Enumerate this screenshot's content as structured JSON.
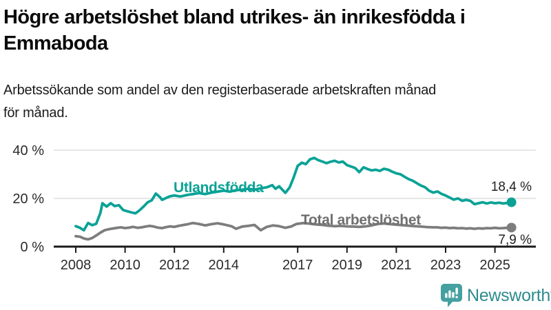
{
  "header": {
    "title": "Högre arbetslöshet bland utrikes- än inrikesfödda i\nEmmaboda",
    "subtitle": "Arbetssökande som andel av den registerbaserade arbetskraften månad\nför månad."
  },
  "chart_data": {
    "type": "line",
    "title": "Högre arbetslöshet bland utrikes- än inrikesfödda i Emmaboda",
    "subtitle": "Arbetssökande som andel av den registerbaserade arbetskraften månad för månad.",
    "xlabel": "",
    "ylabel": "",
    "xlim": [
      2007.85,
      2026.3
    ],
    "ylim": [
      0,
      44
    ],
    "grid": "horizontal",
    "legend_position": "inline-labels",
    "y_ticks": [
      {
        "value": 0,
        "label": "0 %"
      },
      {
        "value": 20,
        "label": "20 %"
      },
      {
        "value": 40,
        "label": "40 %"
      }
    ],
    "x_ticks": [
      {
        "year": 2008,
        "label": "2008"
      },
      {
        "year": 2010,
        "label": "2010"
      },
      {
        "year": 2012,
        "label": "2012"
      },
      {
        "year": 2014,
        "label": "2014"
      },
      {
        "year": 2017,
        "label": "2017"
      },
      {
        "year": 2019,
        "label": "2019"
      },
      {
        "year": 2021,
        "label": "2021"
      },
      {
        "year": 2023,
        "label": "2023"
      },
      {
        "year": 2025,
        "label": "2025"
      }
    ],
    "colors": {
      "grid": "#d8d8d8",
      "axis": "#1a1a1a",
      "tick_text": "#2b2b2b",
      "utlandsfodda": "#0ba296",
      "total": "#7d7d7d"
    },
    "series": [
      {
        "name": "Utlandsfödda",
        "color": "#0ba296",
        "end_label": "18,4 %",
        "end_value": 18.4,
        "points": [
          [
            2008.0,
            8.5
          ],
          [
            2008.17,
            7.8
          ],
          [
            2008.33,
            6.8
          ],
          [
            2008.5,
            9.8
          ],
          [
            2008.67,
            8.9
          ],
          [
            2008.83,
            9.5
          ],
          [
            2009.0,
            14.0
          ],
          [
            2009.08,
            18.0
          ],
          [
            2009.25,
            16.6
          ],
          [
            2009.42,
            18.0
          ],
          [
            2009.58,
            16.8
          ],
          [
            2009.75,
            17.2
          ],
          [
            2009.92,
            15.2
          ],
          [
            2010.08,
            14.7
          ],
          [
            2010.25,
            14.2
          ],
          [
            2010.42,
            13.8
          ],
          [
            2010.58,
            15.0
          ],
          [
            2010.75,
            16.6
          ],
          [
            2010.92,
            18.4
          ],
          [
            2011.08,
            19.2
          ],
          [
            2011.25,
            22.0
          ],
          [
            2011.42,
            20.5
          ],
          [
            2011.5,
            19.4
          ],
          [
            2011.67,
            20.2
          ],
          [
            2011.83,
            20.9
          ],
          [
            2012.0,
            21.2
          ],
          [
            2012.25,
            20.8
          ],
          [
            2012.5,
            21.4
          ],
          [
            2012.75,
            21.8
          ],
          [
            2013.0,
            22.2
          ],
          [
            2013.25,
            21.8
          ],
          [
            2013.5,
            22.4
          ],
          [
            2013.75,
            22.8
          ],
          [
            2014.0,
            23.2
          ],
          [
            2014.25,
            22.8
          ],
          [
            2014.5,
            23.4
          ],
          [
            2014.75,
            23.6
          ],
          [
            2015.0,
            24.0
          ],
          [
            2015.25,
            23.6
          ],
          [
            2015.5,
            24.2
          ],
          [
            2015.75,
            24.6
          ],
          [
            2015.97,
            25.5
          ],
          [
            2016.1,
            24.0
          ],
          [
            2016.25,
            25.0
          ],
          [
            2016.5,
            22.3
          ],
          [
            2016.67,
            24.5
          ],
          [
            2016.83,
            28.5
          ],
          [
            2017.0,
            33.5
          ],
          [
            2017.17,
            34.8
          ],
          [
            2017.33,
            34.2
          ],
          [
            2017.5,
            36.2
          ],
          [
            2017.67,
            36.8
          ],
          [
            2017.83,
            35.9
          ],
          [
            2018.0,
            35.3
          ],
          [
            2018.17,
            34.6
          ],
          [
            2018.33,
            35.2
          ],
          [
            2018.5,
            35.6
          ],
          [
            2018.67,
            34.9
          ],
          [
            2018.83,
            35.3
          ],
          [
            2019.0,
            33.8
          ],
          [
            2019.17,
            33.2
          ],
          [
            2019.33,
            32.6
          ],
          [
            2019.5,
            30.9
          ],
          [
            2019.67,
            32.9
          ],
          [
            2019.83,
            32.2
          ],
          [
            2020.0,
            31.6
          ],
          [
            2020.17,
            31.9
          ],
          [
            2020.33,
            31.4
          ],
          [
            2020.5,
            32.3
          ],
          [
            2020.67,
            31.9
          ],
          [
            2020.83,
            31.1
          ],
          [
            2021.0,
            30.4
          ],
          [
            2021.17,
            30.0
          ],
          [
            2021.33,
            29.0
          ],
          [
            2021.5,
            28.0
          ],
          [
            2021.67,
            27.3
          ],
          [
            2021.83,
            26.3
          ],
          [
            2022.0,
            25.3
          ],
          [
            2022.17,
            24.6
          ],
          [
            2022.33,
            23.2
          ],
          [
            2022.5,
            22.4
          ],
          [
            2022.67,
            22.9
          ],
          [
            2022.83,
            21.9
          ],
          [
            2023.0,
            21.2
          ],
          [
            2023.17,
            20.3
          ],
          [
            2023.33,
            19.5
          ],
          [
            2023.5,
            20.0
          ],
          [
            2023.67,
            19.0
          ],
          [
            2023.83,
            19.4
          ],
          [
            2024.0,
            19.0
          ],
          [
            2024.17,
            17.6
          ],
          [
            2024.33,
            18.0
          ],
          [
            2024.5,
            18.4
          ],
          [
            2024.67,
            17.9
          ],
          [
            2024.83,
            18.3
          ],
          [
            2025.0,
            18.0
          ],
          [
            2025.17,
            18.2
          ],
          [
            2025.33,
            17.9
          ],
          [
            2025.5,
            18.1
          ],
          [
            2025.67,
            18.4
          ]
        ]
      },
      {
        "name": "Total arbetslöshet",
        "color": "#7d7d7d",
        "end_label": "7,9 %",
        "end_value": 7.9,
        "points": [
          [
            2008.0,
            4.3
          ],
          [
            2008.17,
            4.1
          ],
          [
            2008.33,
            3.4
          ],
          [
            2008.5,
            3.0
          ],
          [
            2008.67,
            3.6
          ],
          [
            2008.83,
            4.6
          ],
          [
            2009.0,
            5.8
          ],
          [
            2009.17,
            6.8
          ],
          [
            2009.33,
            7.2
          ],
          [
            2009.5,
            7.5
          ],
          [
            2009.67,
            7.8
          ],
          [
            2009.83,
            8.0
          ],
          [
            2010.0,
            7.7
          ],
          [
            2010.17,
            7.9
          ],
          [
            2010.33,
            8.2
          ],
          [
            2010.5,
            7.8
          ],
          [
            2010.67,
            8.0
          ],
          [
            2010.83,
            8.3
          ],
          [
            2011.0,
            8.6
          ],
          [
            2011.17,
            8.3
          ],
          [
            2011.33,
            7.9
          ],
          [
            2011.5,
            7.7
          ],
          [
            2011.67,
            8.1
          ],
          [
            2011.83,
            8.4
          ],
          [
            2012.0,
            8.2
          ],
          [
            2012.17,
            8.6
          ],
          [
            2012.5,
            9.2
          ],
          [
            2012.75,
            9.8
          ],
          [
            2013.0,
            9.4
          ],
          [
            2013.25,
            8.8
          ],
          [
            2013.5,
            9.3
          ],
          [
            2013.75,
            9.7
          ],
          [
            2014.0,
            9.2
          ],
          [
            2014.17,
            8.8
          ],
          [
            2014.33,
            8.4
          ],
          [
            2014.5,
            7.4
          ],
          [
            2014.75,
            8.3
          ],
          [
            2015.0,
            8.6
          ],
          [
            2015.25,
            9.0
          ],
          [
            2015.5,
            6.8
          ],
          [
            2015.75,
            8.2
          ],
          [
            2016.0,
            8.8
          ],
          [
            2016.25,
            8.5
          ],
          [
            2016.5,
            7.8
          ],
          [
            2016.75,
            8.4
          ],
          [
            2016.95,
            9.4
          ],
          [
            2017.25,
            9.8
          ],
          [
            2017.5,
            9.5
          ],
          [
            2017.75,
            9.2
          ],
          [
            2018.0,
            9.0
          ],
          [
            2018.25,
            8.7
          ],
          [
            2018.5,
            8.5
          ],
          [
            2018.75,
            8.6
          ],
          [
            2019.0,
            8.4
          ],
          [
            2019.25,
            8.3
          ],
          [
            2019.5,
            8.2
          ],
          [
            2019.75,
            8.4
          ],
          [
            2020.0,
            8.8
          ],
          [
            2020.25,
            9.4
          ],
          [
            2020.5,
            9.6
          ],
          [
            2020.75,
            9.3
          ],
          [
            2021.0,
            9.1
          ],
          [
            2021.25,
            8.9
          ],
          [
            2021.5,
            8.7
          ],
          [
            2021.75,
            8.5
          ],
          [
            2022.0,
            8.3
          ],
          [
            2022.25,
            8.1
          ],
          [
            2022.5,
            8.0
          ],
          [
            2022.67,
            8.0
          ],
          [
            2022.83,
            7.8
          ],
          [
            2023.0,
            7.9
          ],
          [
            2023.17,
            7.7
          ],
          [
            2023.33,
            7.8
          ],
          [
            2023.5,
            7.6
          ],
          [
            2023.67,
            7.7
          ],
          [
            2023.83,
            7.5
          ],
          [
            2024.0,
            7.6
          ],
          [
            2024.17,
            7.4
          ],
          [
            2024.33,
            7.6
          ],
          [
            2024.5,
            7.5
          ],
          [
            2024.67,
            7.7
          ],
          [
            2024.83,
            7.6
          ],
          [
            2025.0,
            7.8
          ],
          [
            2025.17,
            7.6
          ],
          [
            2025.33,
            7.7
          ],
          [
            2025.5,
            7.8
          ],
          [
            2025.67,
            7.9
          ]
        ]
      }
    ]
  },
  "footer": {
    "logo_text": "Newsworthy",
    "logo_color": "#45a0a0",
    "logo_text_color": "#2e8b8d"
  }
}
